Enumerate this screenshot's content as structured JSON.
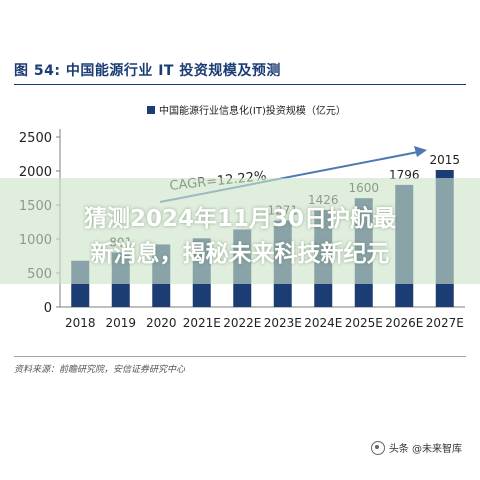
{
  "figure_label": "图 54: 中国能源行业 IT 投资规模及预测",
  "source_note": "资料来源：前瞻研究院，安信证券研究中心",
  "watermark": {
    "line1": "猜测2024年11月30日护航最",
    "line2": "新消息，揭秘未来科技新纪元"
  },
  "credit": "头条 @未来智库",
  "colors": {
    "bar": "#1c3c74",
    "accent": "#1c3c74",
    "arrow": "#4d78b3"
  },
  "chart_data": {
    "type": "bar",
    "categories": [
      "2018",
      "2019",
      "2020",
      "2021E",
      "2022E",
      "2023E",
      "2024E",
      "2025E",
      "2026E",
      "2027E"
    ],
    "series": [
      {
        "name": "中国能源行业信息化(IT)投资规模（亿元）",
        "values": [
          680,
          801,
          920,
          1010,
          1140,
          1271,
          1426,
          1600,
          1796,
          2015
        ]
      }
    ],
    "data_labels": [
      "",
      "801",
      "",
      "",
      "",
      "1271",
      "1426",
      "1600",
      "1796",
      "2015"
    ],
    "annotation": "CAGR=12.22%",
    "ylim": [
      0,
      2500
    ],
    "yticks": [
      0,
      500,
      1000,
      1500,
      2000,
      2500
    ],
    "title": "",
    "xlabel": "",
    "ylabel": "",
    "grid": false,
    "legend_position": "top"
  }
}
